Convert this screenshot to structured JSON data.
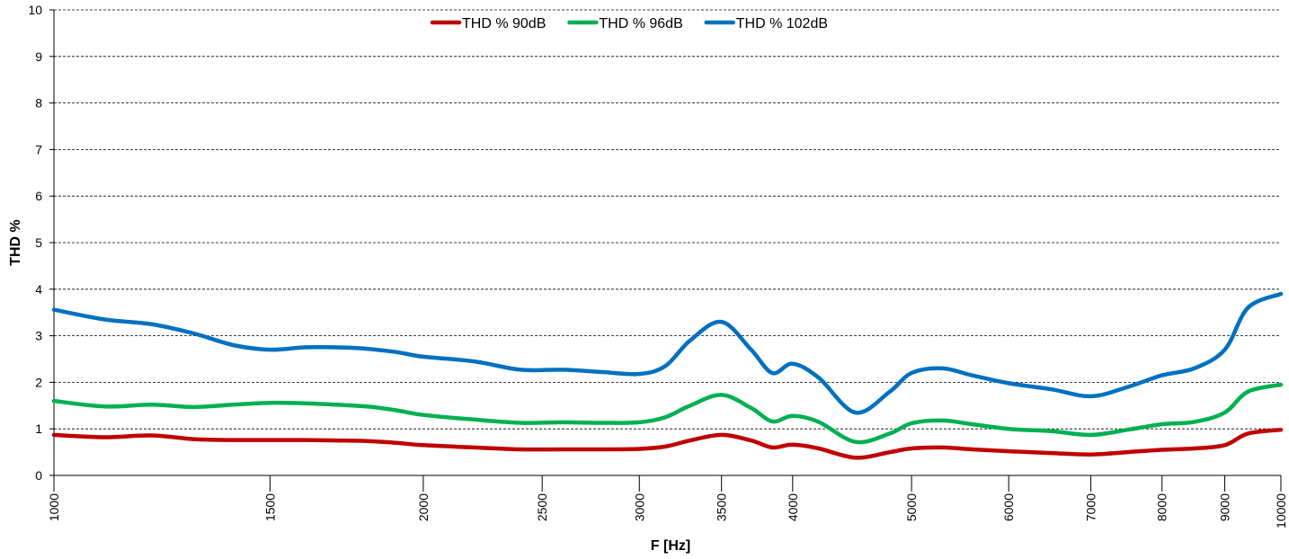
{
  "chart_data": {
    "type": "line",
    "title": "",
    "xlabel": "F [Hz]",
    "ylabel": "THD %",
    "x_scale": "log",
    "xlim": [
      1000,
      10000
    ],
    "ylim": [
      0,
      10
    ],
    "grid": "horizontal dashed",
    "legend_position": "top-center",
    "x_ticks": [
      "1000",
      "1500",
      "2000",
      "2500",
      "3000",
      "3500",
      "4000",
      "5000",
      "6000",
      "7000",
      "8000",
      "9000",
      "10000"
    ],
    "y_ticks": [
      "0",
      "1",
      "2",
      "3",
      "4",
      "5",
      "6",
      "7",
      "8",
      "9",
      "10"
    ],
    "series": [
      {
        "name": "THD % 90dB",
        "color": "#c00000",
        "x": [
          1000,
          1100,
          1200,
          1300,
          1400,
          1500,
          1600,
          1700,
          1800,
          1900,
          2000,
          2200,
          2400,
          2600,
          2800,
          3000,
          3150,
          3300,
          3500,
          3700,
          3850,
          4000,
          4200,
          4500,
          4800,
          5000,
          5300,
          5600,
          6000,
          6500,
          7000,
          7500,
          8000,
          8500,
          9000,
          9400,
          10000
        ],
        "y": [
          0.87,
          0.82,
          0.86,
          0.78,
          0.76,
          0.76,
          0.76,
          0.75,
          0.74,
          0.7,
          0.65,
          0.6,
          0.56,
          0.56,
          0.56,
          0.57,
          0.62,
          0.75,
          0.87,
          0.75,
          0.6,
          0.66,
          0.58,
          0.38,
          0.5,
          0.58,
          0.6,
          0.56,
          0.52,
          0.48,
          0.45,
          0.5,
          0.55,
          0.58,
          0.65,
          0.9,
          0.98
        ]
      },
      {
        "name": "THD % 96dB",
        "color": "#00b050",
        "x": [
          1000,
          1100,
          1200,
          1300,
          1400,
          1500,
          1600,
          1700,
          1800,
          1900,
          2000,
          2200,
          2400,
          2600,
          2800,
          3000,
          3150,
          3300,
          3500,
          3700,
          3850,
          4000,
          4200,
          4500,
          4800,
          5000,
          5300,
          5600,
          6000,
          6500,
          7000,
          7500,
          8000,
          8500,
          9000,
          9400,
          10000
        ],
        "y": [
          1.6,
          1.48,
          1.52,
          1.47,
          1.52,
          1.56,
          1.55,
          1.52,
          1.48,
          1.4,
          1.3,
          1.2,
          1.13,
          1.14,
          1.13,
          1.14,
          1.25,
          1.5,
          1.73,
          1.45,
          1.16,
          1.28,
          1.15,
          0.72,
          0.9,
          1.12,
          1.18,
          1.1,
          1.0,
          0.95,
          0.87,
          0.98,
          1.1,
          1.15,
          1.35,
          1.8,
          1.95
        ]
      },
      {
        "name": "THD % 102dB",
        "color": "#0070c0",
        "x": [
          1000,
          1100,
          1200,
          1300,
          1400,
          1500,
          1600,
          1700,
          1800,
          1900,
          2000,
          2200,
          2400,
          2600,
          2800,
          3000,
          3150,
          3300,
          3500,
          3700,
          3850,
          4000,
          4200,
          4500,
          4800,
          5000,
          5300,
          5600,
          6000,
          6500,
          7000,
          7500,
          8000,
          8500,
          9000,
          9400,
          10000
        ],
        "y": [
          3.56,
          3.35,
          3.25,
          3.05,
          2.8,
          2.7,
          2.75,
          2.75,
          2.72,
          2.65,
          2.55,
          2.45,
          2.27,
          2.27,
          2.22,
          2.18,
          2.35,
          2.9,
          3.3,
          2.7,
          2.2,
          2.4,
          2.1,
          1.35,
          1.8,
          2.2,
          2.3,
          2.15,
          1.98,
          1.85,
          1.7,
          1.9,
          2.15,
          2.3,
          2.7,
          3.6,
          3.9
        ]
      }
    ]
  }
}
